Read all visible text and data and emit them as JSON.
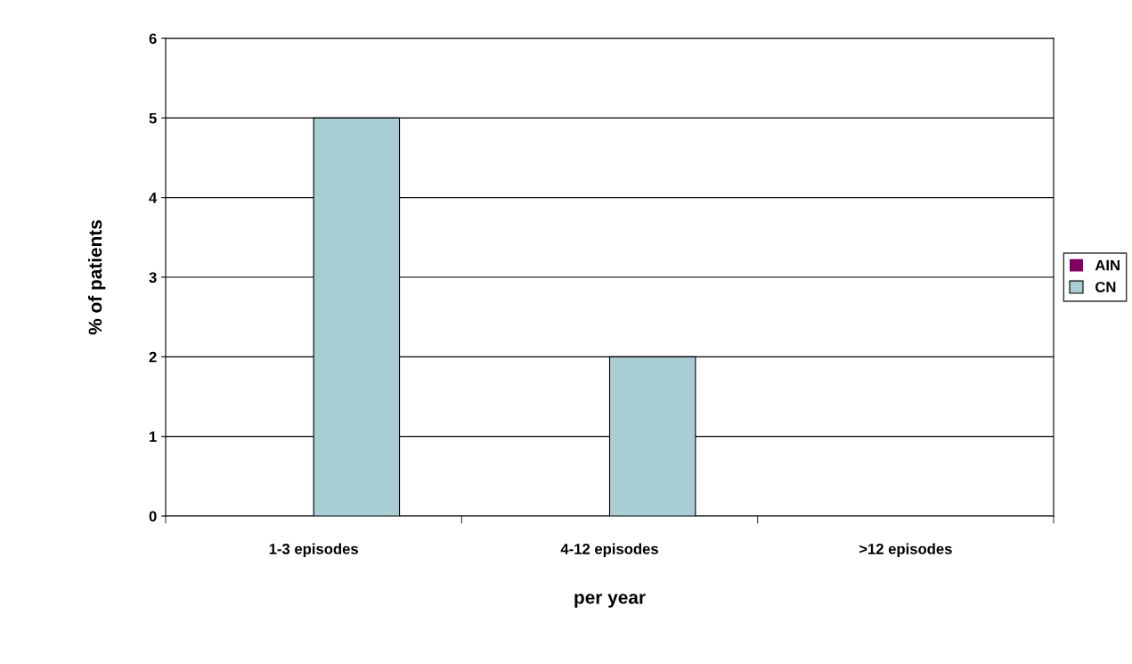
{
  "chart_data": {
    "type": "bar",
    "ylabel": "% of patients",
    "xlabel": "per year",
    "categories": [
      "1-3 episodes",
      "4-12 episodes",
      ">12 episodes"
    ],
    "series": [
      {
        "name": "AIN",
        "color": "#800060",
        "values": [
          0,
          0,
          0
        ]
      },
      {
        "name": "CN",
        "color": "#a8cdd3",
        "values": [
          5,
          2,
          0
        ]
      }
    ],
    "ylim": [
      0,
      6
    ],
    "yticks": [
      0,
      1,
      2,
      3,
      4,
      5,
      6
    ],
    "grid": "y",
    "legend": "right"
  }
}
